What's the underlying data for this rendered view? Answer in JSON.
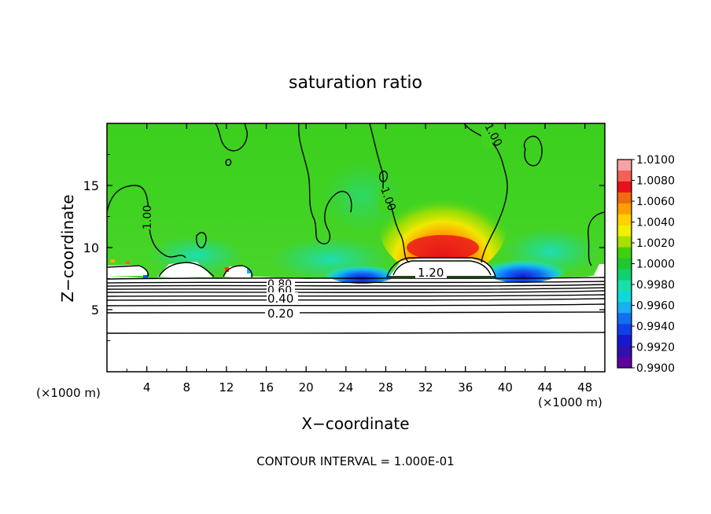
{
  "chart_data": {
    "type": "heatmap",
    "title": "saturation ratio",
    "xlabel": "X−coordinate",
    "ylabel": "Z−coordinate",
    "x_unit": "(×1000 m)",
    "y_unit": "(×1000 m)",
    "xlim": [
      0,
      50
    ],
    "ylim": [
      0,
      20
    ],
    "x_ticks": [
      4,
      8,
      12,
      16,
      20,
      24,
      28,
      32,
      36,
      40,
      44,
      48
    ],
    "y_ticks": [
      5,
      10,
      15
    ],
    "colorbar": {
      "min": 0.99,
      "max": 1.01,
      "tick_labels": [
        "1.0100",
        "1.0080",
        "1.0060",
        "1.0040",
        "1.0020",
        "1.0000",
        "0.9980",
        "0.9960",
        "0.9940",
        "0.9920",
        "0.9900"
      ],
      "colors": [
        "#f8a3a3",
        "#f26058",
        "#e8101a",
        "#f06a10",
        "#ff9e00",
        "#ffd200",
        "#f0f000",
        "#a8e000",
        "#40d010",
        "#20c830",
        "#10d070",
        "#18e0a8",
        "#10d8d8",
        "#18b0f0",
        "#1070f0",
        "#1040e8",
        "#1818d0",
        "#3010b0",
        "#6000a0"
      ]
    },
    "contour_interval": "CONTOUR INTERVAL = 1.000E-01",
    "contour_labels": [
      "1.00",
      "1.00",
      "1.00",
      "1.20",
      "0.80",
      "0.60",
      "0.40",
      "0.20"
    ]
  }
}
